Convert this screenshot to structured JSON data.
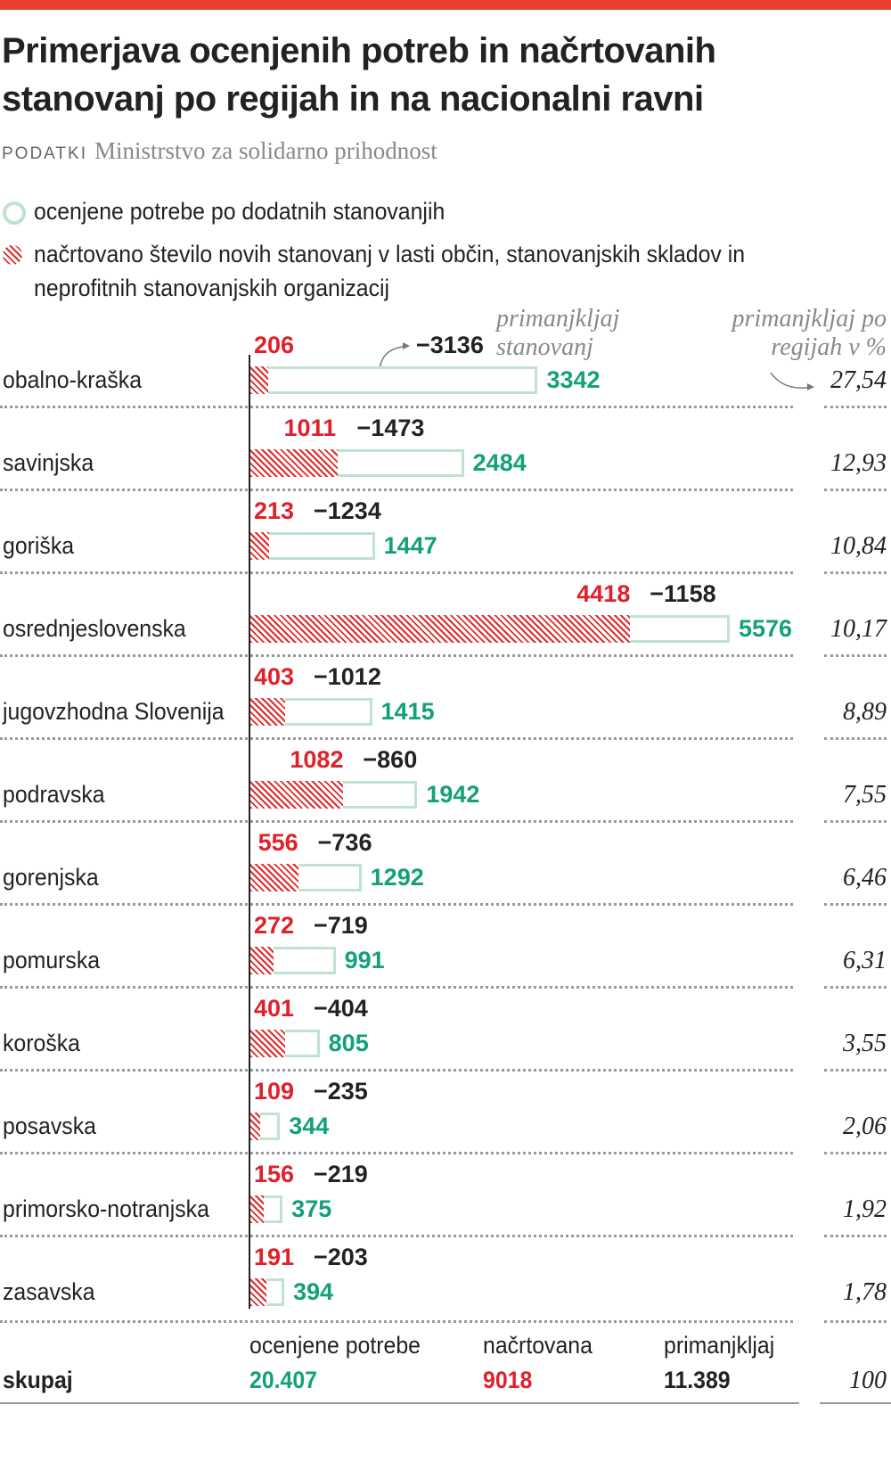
{
  "title": "Primerjava ocenjenih potreb in načrtovanih stanovanj po regijah in na nacionalni ravni",
  "source_label": "PODATKI",
  "source": "Ministrstvo za solidarno prihodnost",
  "legend": [
    {
      "label": "ocenjene potrebe po dodatnih stanovanjih",
      "color": "#bfe3cf"
    },
    {
      "label": "načrtovano število novih stanovanj v lasti občin, stanovanjskih skladov in neprofitnih stanovanjskih organizacij",
      "color": "#e0202a"
    }
  ],
  "notes": {
    "deficit": "primanjkljaj stanovanj",
    "deficit_pct": "primanjkljaj po regijah v %"
  },
  "colors": {
    "planned": "#e0202a",
    "needs": "#13a07a",
    "needs_bar": "#bfe3cf",
    "accent": "#e8412c"
  },
  "chart_data": {
    "type": "bar",
    "categories": [
      "obalno-kraška",
      "savinjska",
      "goriška",
      "osrednjeslovenska",
      "jugovzhodna Slovenija",
      "podravska",
      "gorenjska",
      "pomurska",
      "koroška",
      "posavska",
      "primorsko-notranjska",
      "zasavska"
    ],
    "series": [
      {
        "name": "ocenjene potrebe po dodatnih stanovanjih",
        "values": [
          3342,
          2484,
          1447,
          5576,
          1415,
          1942,
          1292,
          991,
          805,
          344,
          375,
          394
        ]
      },
      {
        "name": "načrtovano število novih stanovanj v lasti občin, stanovanjskih skladov in neprofitnih stanovanjskih organizacij",
        "values": [
          206,
          1011,
          213,
          4418,
          403,
          1082,
          556,
          272,
          401,
          109,
          156,
          191
        ]
      }
    ],
    "deficit": [
      "−3136",
      "−1473",
      "−1234",
      "−1158",
      "−1012",
      "−860",
      "−736",
      "−719",
      "−404",
      "−235",
      "−219",
      "−203"
    ],
    "deficit_pct": [
      "27,54",
      "12,93",
      "10,84",
      "10,17",
      "8,89",
      "7,55",
      "6,46",
      "6,31",
      "3,55",
      "2,06",
      "1,92",
      "1,78"
    ]
  },
  "totals": {
    "label": "skupaj",
    "needs_label": "ocenjene potrebe",
    "needs": "20.407",
    "planned_label": "načrtovana",
    "planned": "9018",
    "deficit_label": "primanjkljaj",
    "deficit": "11.389",
    "pct": "100"
  }
}
